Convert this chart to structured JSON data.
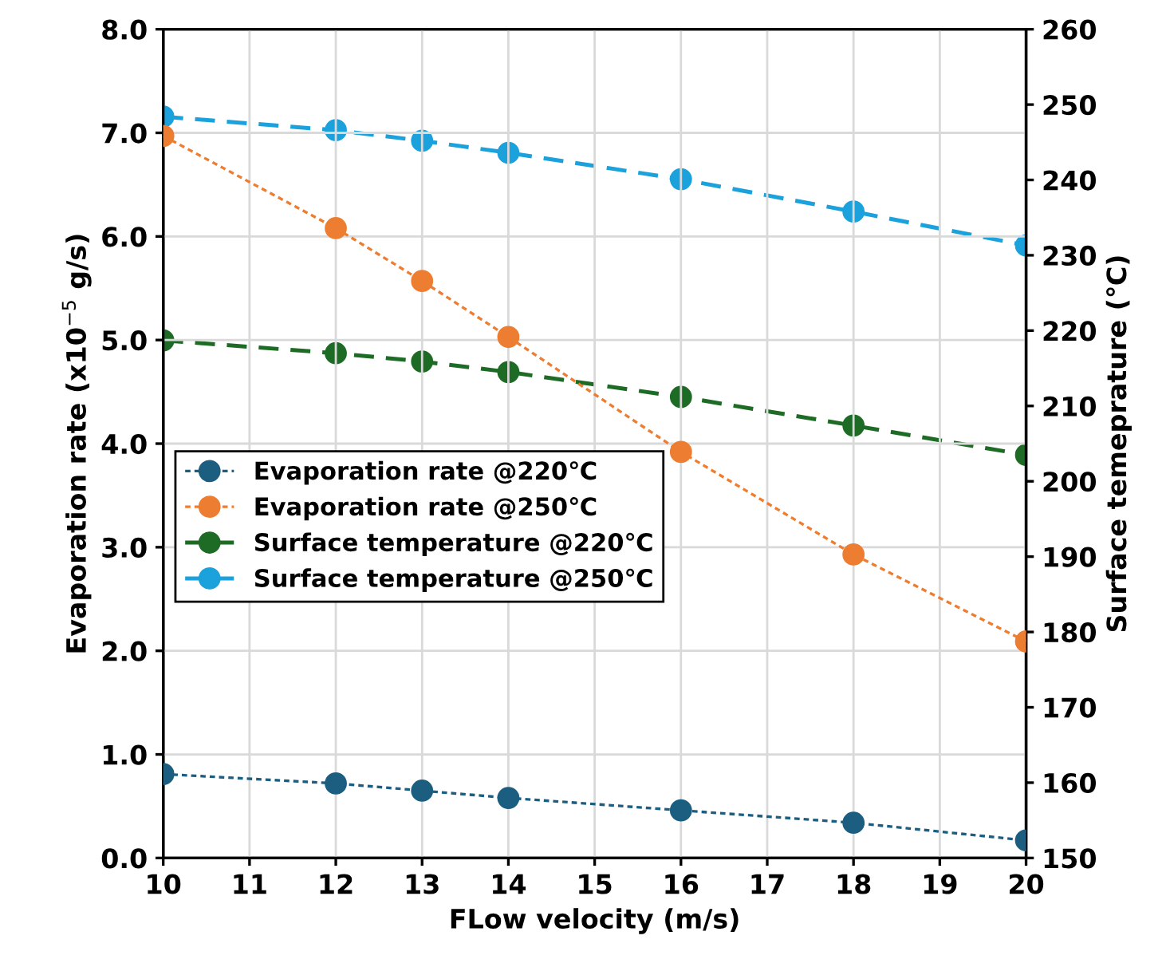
{
  "chart_data": {
    "type": "line",
    "xlabel": "FLow velocity (m/s)",
    "ylabel": "Evaporation rate (x10$^{−5}$ g/s)",
    "y2label": "Surface temeprature (℃)",
    "x": [
      10,
      12,
      13,
      14,
      16,
      18,
      20
    ],
    "series": [
      {
        "name": "Evaporation rate @220℃",
        "color": "#1b5e80",
        "line_style": "dotted",
        "values": [
          0.81,
          0.72,
          0.65,
          0.58,
          0.46,
          0.34,
          0.17
        ]
      },
      {
        "name": "Evaporation rate @250℃",
        "color": "#ed7d31",
        "line_style": "dotted",
        "values": [
          6.97,
          6.08,
          5.57,
          5.03,
          3.92,
          2.93,
          2.09
        ]
      },
      {
        "name": "Surface temperature @220℃",
        "color": "#1e6b26",
        "line_style": "dashed",
        "axis": "y2",
        "values": [
          218.7,
          217.0,
          215.9,
          214.5,
          211.2,
          207.4,
          203.5
        ]
      },
      {
        "name": "Surface temperature @250℃",
        "color": "#1ba1dc",
        "line_style": "dashed",
        "axis": "y2",
        "values": [
          248.4,
          246.6,
          245.2,
          243.6,
          240.1,
          235.8,
          231.3
        ]
      }
    ],
    "marker": "circle",
    "xlim": [
      10,
      20
    ],
    "xticks": [
      10,
      11,
      12,
      13,
      14,
      15,
      16,
      17,
      18,
      19,
      20
    ],
    "ylim": [
      0,
      8
    ],
    "yticks": [
      {
        "value": 0,
        "label": "0.0"
      },
      {
        "value": 1,
        "label": "1.0"
      },
      {
        "value": 2,
        "label": "2.0"
      },
      {
        "value": 3,
        "label": "3.0"
      },
      {
        "value": 4,
        "label": "4.0"
      },
      {
        "value": 5,
        "label": "5.0"
      },
      {
        "value": 6,
        "label": "6.0"
      },
      {
        "value": 7,
        "label": "7.0"
      },
      {
        "value": 8,
        "label": "8.0"
      }
    ],
    "y2lim": [
      150,
      260
    ],
    "y2ticks": [
      150,
      160,
      170,
      180,
      190,
      200,
      210,
      220,
      230,
      240,
      250,
      260
    ],
    "grid": true,
    "legend": "center left"
  }
}
